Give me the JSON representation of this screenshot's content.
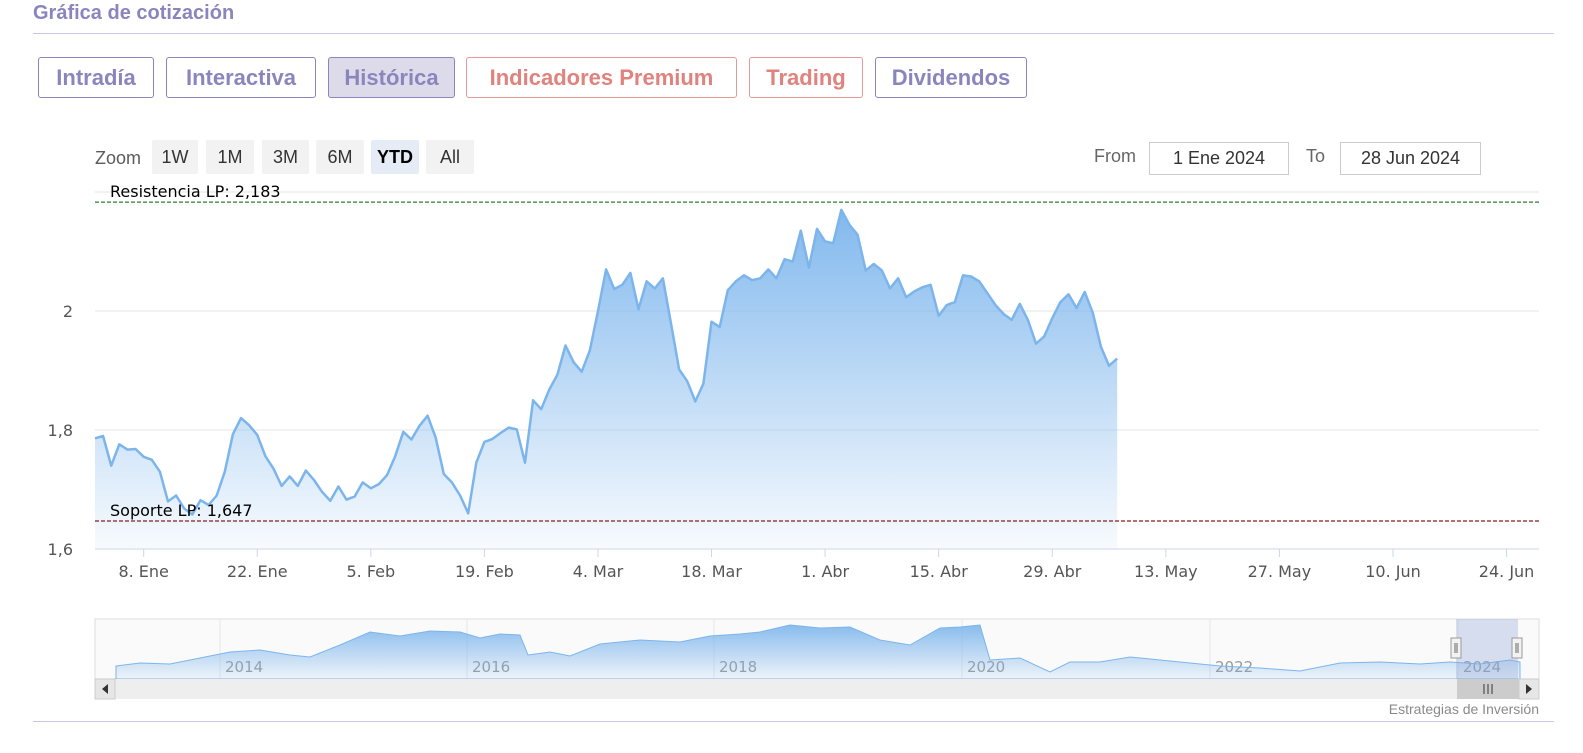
{
  "section_title": "Gráfica de cotización",
  "tabs": [
    {
      "label": "Intradía",
      "state": "normal"
    },
    {
      "label": "Interactiva",
      "state": "normal"
    },
    {
      "label": "Histórica",
      "state": "active"
    },
    {
      "label": "Indicadores Premium",
      "state": "premium"
    },
    {
      "label": "Trading",
      "state": "premium"
    },
    {
      "label": "Dividendos",
      "state": "normal"
    }
  ],
  "zoom": {
    "label": "Zoom",
    "buttons": [
      "1W",
      "1M",
      "3M",
      "6M",
      "YTD",
      "All"
    ],
    "active": "YTD"
  },
  "range": {
    "from_label": "From",
    "from_value": "1 Ene 2024",
    "to_label": "To",
    "to_value": "28 Jun 2024"
  },
  "credit": "Estrategias de Inversión",
  "colors": {
    "accent": "#8b85bd",
    "premium": "#e0827d",
    "series_line": "#7cb5ec",
    "resistance": "#2e7d32",
    "support": "#8b1a1a"
  },
  "chart_data": {
    "type": "area",
    "title": "",
    "xlabel": "",
    "ylabel": "",
    "ylim": [
      1.6,
      2.2
    ],
    "y_ticks": [
      {
        "value": 1.6,
        "label": "1,6"
      },
      {
        "value": 1.8,
        "label": "1,8"
      },
      {
        "value": 2.0,
        "label": "2"
      }
    ],
    "x_range": [
      "2024-01-02",
      "2024-06-28"
    ],
    "x_ticks": [
      {
        "date": "2024-01-08",
        "label": "8. Ene"
      },
      {
        "date": "2024-01-22",
        "label": "22. Ene"
      },
      {
        "date": "2024-02-05",
        "label": "5. Feb"
      },
      {
        "date": "2024-02-19",
        "label": "19. Feb"
      },
      {
        "date": "2024-03-04",
        "label": "4. Mar"
      },
      {
        "date": "2024-03-18",
        "label": "18. Mar"
      },
      {
        "date": "2024-04-01",
        "label": "1. Abr"
      },
      {
        "date": "2024-04-15",
        "label": "15. Abr"
      },
      {
        "date": "2024-04-29",
        "label": "29. Abr"
      },
      {
        "date": "2024-05-13",
        "label": "13. May"
      },
      {
        "date": "2024-05-27",
        "label": "27. May"
      },
      {
        "date": "2024-06-10",
        "label": "10. Jun"
      },
      {
        "date": "2024-06-24",
        "label": "24. Jun"
      }
    ],
    "grid": true,
    "legend": "none",
    "reference_lines": [
      {
        "label": "Resistencia LP: 2,183",
        "value": 2.183,
        "color": "#2e7d32"
      },
      {
        "label": "Soporte LP: 1,647",
        "value": 1.647,
        "color": "#8b1a1a"
      }
    ],
    "series": [
      {
        "points": [
          [
            "2024-01-02",
            1.786
          ],
          [
            "2024-01-03",
            1.79
          ],
          [
            "2024-01-04",
            1.74
          ],
          [
            "2024-01-05",
            1.776
          ],
          [
            "2024-01-06",
            1.767
          ],
          [
            "2024-01-07",
            1.768
          ],
          [
            "2024-01-08",
            1.755
          ],
          [
            "2024-01-09",
            1.75
          ],
          [
            "2024-01-10",
            1.73
          ],
          [
            "2024-01-11",
            1.68
          ],
          [
            "2024-01-12",
            1.69
          ],
          [
            "2024-01-13",
            1.668
          ],
          [
            "2024-01-14",
            1.658
          ],
          [
            "2024-01-15",
            1.682
          ],
          [
            "2024-01-16",
            1.674
          ],
          [
            "2024-01-17",
            1.69
          ],
          [
            "2024-01-18",
            1.73
          ],
          [
            "2024-01-19",
            1.793
          ],
          [
            "2024-01-20",
            1.82
          ],
          [
            "2024-01-21",
            1.808
          ],
          [
            "2024-01-22",
            1.792
          ],
          [
            "2024-01-23",
            1.756
          ],
          [
            "2024-01-24",
            1.735
          ],
          [
            "2024-01-25",
            1.706
          ],
          [
            "2024-01-26",
            1.722
          ],
          [
            "2024-01-27",
            1.706
          ],
          [
            "2024-01-28",
            1.732
          ],
          [
            "2024-01-29",
            1.716
          ],
          [
            "2024-01-30",
            1.696
          ],
          [
            "2024-01-31",
            1.681
          ],
          [
            "2024-02-01",
            1.705
          ],
          [
            "2024-02-02",
            1.683
          ],
          [
            "2024-02-03",
            1.688
          ],
          [
            "2024-02-04",
            1.712
          ],
          [
            "2024-02-05",
            1.702
          ],
          [
            "2024-02-06",
            1.709
          ],
          [
            "2024-02-07",
            1.724
          ],
          [
            "2024-02-08",
            1.756
          ],
          [
            "2024-02-09",
            1.797
          ],
          [
            "2024-02-10",
            1.784
          ],
          [
            "2024-02-11",
            1.807
          ],
          [
            "2024-02-12",
            1.824
          ],
          [
            "2024-02-13",
            1.787
          ],
          [
            "2024-02-14",
            1.726
          ],
          [
            "2024-02-15",
            1.712
          ],
          [
            "2024-02-16",
            1.69
          ],
          [
            "2024-02-17",
            1.66
          ],
          [
            "2024-02-18",
            1.745
          ],
          [
            "2024-02-19",
            1.78
          ],
          [
            "2024-02-20",
            1.785
          ],
          [
            "2024-02-21",
            1.795
          ],
          [
            "2024-02-22",
            1.804
          ],
          [
            "2024-02-23",
            1.801
          ],
          [
            "2024-02-24",
            1.745
          ],
          [
            "2024-02-25",
            1.85
          ],
          [
            "2024-02-26",
            1.835
          ],
          [
            "2024-02-27",
            1.868
          ],
          [
            "2024-02-28",
            1.893
          ],
          [
            "2024-02-29",
            1.942
          ],
          [
            "2024-03-01",
            1.914
          ],
          [
            "2024-03-02",
            1.898
          ],
          [
            "2024-03-03",
            1.934
          ],
          [
            "2024-03-04",
            2.0
          ],
          [
            "2024-03-05",
            2.07
          ],
          [
            "2024-03-06",
            2.037
          ],
          [
            "2024-03-07",
            2.044
          ],
          [
            "2024-03-08",
            2.064
          ],
          [
            "2024-03-09",
            2.003
          ],
          [
            "2024-03-10",
            2.05
          ],
          [
            "2024-03-11",
            2.038
          ],
          [
            "2024-03-12",
            2.055
          ],
          [
            "2024-03-13",
            1.979
          ],
          [
            "2024-03-14",
            1.902
          ],
          [
            "2024-03-15",
            1.882
          ],
          [
            "2024-03-16",
            1.848
          ],
          [
            "2024-03-17",
            1.878
          ],
          [
            "2024-03-18",
            1.982
          ],
          [
            "2024-03-19",
            1.973
          ],
          [
            "2024-03-20",
            2.035
          ],
          [
            "2024-03-21",
            2.05
          ],
          [
            "2024-03-22",
            2.06
          ],
          [
            "2024-03-23",
            2.052
          ],
          [
            "2024-03-24",
            2.055
          ],
          [
            "2024-03-25",
            2.07
          ],
          [
            "2024-03-26",
            2.055
          ],
          [
            "2024-03-27",
            2.087
          ],
          [
            "2024-03-28",
            2.083
          ],
          [
            "2024-03-29",
            2.135
          ],
          [
            "2024-03-30",
            2.073
          ],
          [
            "2024-03-31",
            2.138
          ],
          [
            "2024-04-01",
            2.117
          ],
          [
            "2024-04-02",
            2.114
          ],
          [
            "2024-04-03",
            2.17
          ],
          [
            "2024-04-04",
            2.145
          ],
          [
            "2024-04-05",
            2.128
          ],
          [
            "2024-04-06",
            2.068
          ],
          [
            "2024-04-07",
            2.079
          ],
          [
            "2024-04-08",
            2.068
          ],
          [
            "2024-04-09",
            2.038
          ],
          [
            "2024-04-10",
            2.055
          ],
          [
            "2024-04-11",
            2.023
          ],
          [
            "2024-04-12",
            2.033
          ],
          [
            "2024-04-13",
            2.04
          ],
          [
            "2024-04-14",
            2.044
          ],
          [
            "2024-04-15",
            1.992
          ],
          [
            "2024-04-16",
            2.01
          ],
          [
            "2024-04-17",
            2.015
          ],
          [
            "2024-04-18",
            2.06
          ],
          [
            "2024-04-19",
            2.058
          ],
          [
            "2024-04-20",
            2.05
          ],
          [
            "2024-04-21",
            2.03
          ],
          [
            "2024-04-22",
            2.01
          ],
          [
            "2024-04-23",
            1.995
          ],
          [
            "2024-04-24",
            1.985
          ],
          [
            "2024-04-25",
            2.012
          ],
          [
            "2024-04-26",
            1.985
          ],
          [
            "2024-04-27",
            1.945
          ],
          [
            "2024-04-28",
            1.957
          ],
          [
            "2024-04-29",
            1.988
          ],
          [
            "2024-04-30",
            2.015
          ],
          [
            "2024-05-01",
            2.028
          ],
          [
            "2024-05-02",
            2.005
          ],
          [
            "2024-05-03",
            2.032
          ],
          [
            "2024-05-04",
            1.997
          ],
          [
            "2024-05-05",
            1.94
          ],
          [
            "2024-05-06",
            1.908
          ],
          [
            "2024-05-07",
            1.92
          ]
        ]
      }
    ]
  },
  "navigator": {
    "year_labels": [
      "2014",
      "2016",
      "2018",
      "2020",
      "2022",
      "2024"
    ]
  }
}
